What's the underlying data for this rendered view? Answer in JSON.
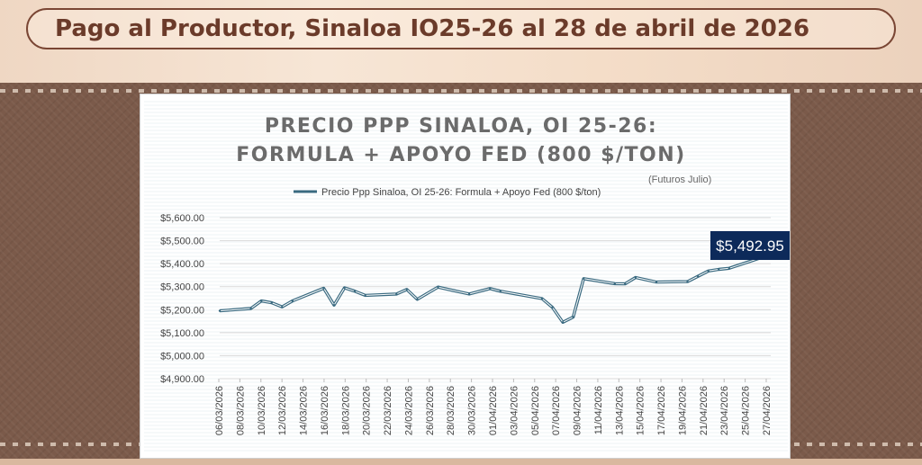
{
  "header": {
    "title": "Pago al Productor, Sinaloa IO25-26 al 28 de abril de 2026"
  },
  "colors": {
    "line": "#3a6a80",
    "callout_bg": "#0d2a5a",
    "title_text": "#6b3b2a",
    "chart_title_text": "#6b6b6b"
  },
  "chart_data": {
    "type": "line",
    "title_lines": [
      "PRECIO PPP SINALOA, OI 25-26:",
      "FORMULA + APOYO FED (800 $/TON)"
    ],
    "subtitle": "(Futuros Julio)",
    "xlabel": "",
    "ylabel": "",
    "ylim": [
      4900,
      5600
    ],
    "yticks": [
      4900,
      5000,
      5100,
      5200,
      5300,
      5400,
      5500,
      5600
    ],
    "ytick_labels": [
      "$4,900.00",
      "$5,000.00",
      "$5,100.00",
      "$5,200.00",
      "$5,300.00",
      "$5,400.00",
      "$5,500.00",
      "$5,600.00"
    ],
    "grid": "horizontal",
    "legend": {
      "position": "top",
      "entries": [
        "Precio Ppp Sinaloa, OI 25-26: Formula + Apoyo Fed (800 $/ton)"
      ]
    },
    "xlim": [
      "2026-03-06",
      "2026-04-28"
    ],
    "xtick_labels": [
      "06/03/2026",
      "08/03/2026",
      "10/03/2026",
      "12/03/2026",
      "14/03/2026",
      "16/03/2026",
      "18/03/2026",
      "20/03/2026",
      "22/03/2026",
      "24/03/2026",
      "26/03/2026",
      "28/03/2026",
      "30/03/2026",
      "01/04/2026",
      "03/04/2026",
      "05/04/2026",
      "07/04/2026",
      "09/04/2026",
      "11/04/2026",
      "13/04/2026",
      "15/04/2026",
      "17/04/2026",
      "19/04/2026",
      "21/04/2026",
      "23/04/2026",
      "25/04/2026",
      "27/04/2026"
    ],
    "series": [
      {
        "name": "Precio Ppp Sinaloa, OI 25-26: Formula + Apoyo Fed (800 $/ton)",
        "x": [
          "2026-03-06",
          "2026-03-09",
          "2026-03-10",
          "2026-03-11",
          "2026-03-12",
          "2026-03-13",
          "2026-03-16",
          "2026-03-17",
          "2026-03-18",
          "2026-03-19",
          "2026-03-20",
          "2026-03-23",
          "2026-03-24",
          "2026-03-25",
          "2026-03-27",
          "2026-03-30",
          "2026-04-01",
          "2026-04-02",
          "2026-04-06",
          "2026-04-07",
          "2026-04-08",
          "2026-04-09",
          "2026-04-10",
          "2026-04-13",
          "2026-04-14",
          "2026-04-15",
          "2026-04-17",
          "2026-04-20",
          "2026-04-21",
          "2026-04-22",
          "2026-04-23",
          "2026-04-24",
          "2026-04-27",
          "2026-04-28"
        ],
        "values": [
          5195,
          5205,
          5238,
          5230,
          5212,
          5238,
          5293,
          5220,
          5295,
          5280,
          5262,
          5268,
          5288,
          5245,
          5298,
          5268,
          5292,
          5280,
          5248,
          5210,
          5145,
          5168,
          5335,
          5313,
          5312,
          5340,
          5320,
          5322,
          5345,
          5368,
          5375,
          5380,
          5425,
          5492.95
        ]
      }
    ],
    "callout": {
      "label": "$5,492.95",
      "value": 5492.95,
      "x": "2026-04-28"
    }
  }
}
